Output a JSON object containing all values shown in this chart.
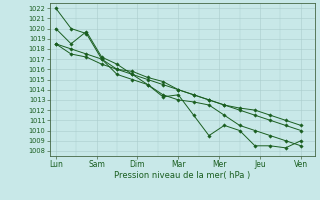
{
  "title": "Pression niveau de la mer( hPa )",
  "bg_color": "#c8e8e8",
  "grid_color": "#aacccc",
  "line_color": "#1a5e20",
  "marker_color": "#1a5e20",
  "ylim": [
    1007.5,
    1022.5
  ],
  "yticks": [
    1008,
    1009,
    1010,
    1011,
    1012,
    1013,
    1014,
    1015,
    1016,
    1017,
    1018,
    1019,
    1020,
    1021,
    1022
  ],
  "xtick_labels": [
    "Lun",
    "Sam",
    "Dim",
    "Mar",
    "Mer",
    "Jeu",
    "Ven"
  ],
  "xtick_positions": [
    0,
    1,
    2,
    3,
    4,
    5,
    6
  ],
  "lines": [
    [
      1022.0,
      1020.0,
      1019.5,
      1017.0,
      1015.5,
      1015.0,
      1014.5,
      1013.3,
      1013.5,
      1011.5,
      1009.5,
      1010.5,
      1010.0,
      1008.5,
      1008.5,
      1008.3,
      1009.0
    ],
    [
      1020.0,
      1018.5,
      1019.7,
      1017.2,
      1016.5,
      1015.5,
      1014.5,
      1013.5,
      1013.0,
      1012.8,
      1012.5,
      1011.5,
      1010.5,
      1010.0,
      1009.5,
      1009.0,
      1008.5
    ],
    [
      1018.5,
      1018.0,
      1017.5,
      1017.0,
      1016.0,
      1015.8,
      1015.2,
      1014.8,
      1014.0,
      1013.5,
      1013.0,
      1012.5,
      1012.0,
      1011.5,
      1011.0,
      1010.5,
      1010.0
    ],
    [
      1018.5,
      1017.5,
      1017.2,
      1016.5,
      1016.0,
      1015.5,
      1015.0,
      1014.5,
      1014.0,
      1013.5,
      1013.0,
      1012.5,
      1012.2,
      1012.0,
      1011.5,
      1011.0,
      1010.5
    ]
  ],
  "n_points": 17,
  "xlabel_fontsize": 5.5,
  "ylabel_fontsize": 4.8,
  "title_fontsize": 6.0
}
